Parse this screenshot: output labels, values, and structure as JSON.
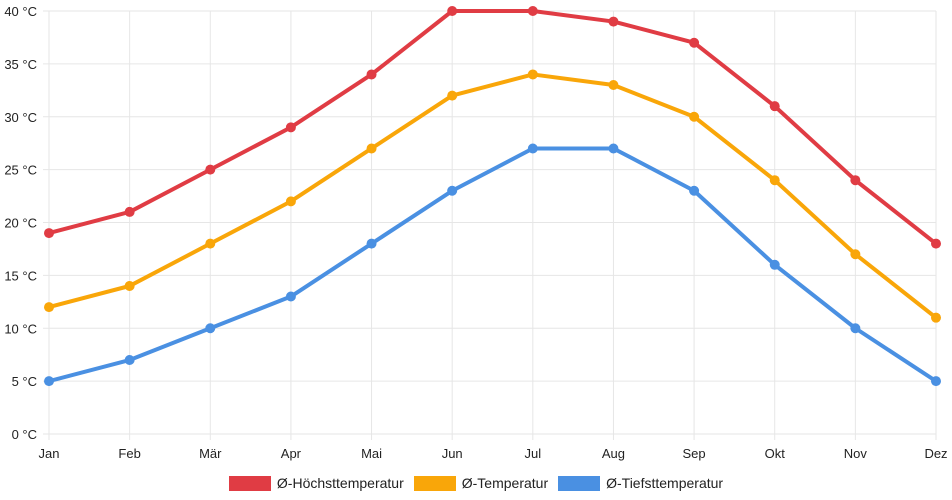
{
  "chart_data": {
    "type": "line",
    "title": "",
    "xlabel": "",
    "ylabel": "",
    "ylim": [
      0,
      40
    ],
    "y_tick_step": 5,
    "y_unit": " °C",
    "grid": true,
    "legend_position": "bottom",
    "categories": [
      "Jan",
      "Feb",
      "Mär",
      "Apr",
      "Mai",
      "Jun",
      "Jul",
      "Aug",
      "Sep",
      "Okt",
      "Nov",
      "Dez"
    ],
    "series": [
      {
        "name": "Ø-Höchsttemperatur",
        "color": "#e03c44",
        "values": [
          19,
          21,
          25,
          29,
          34,
          40,
          40,
          39,
          37,
          31,
          24,
          18
        ]
      },
      {
        "name": "Ø-Temperatur",
        "color": "#f9a609",
        "values": [
          12,
          14,
          18,
          22,
          27,
          32,
          34,
          33,
          30,
          24,
          17,
          11
        ]
      },
      {
        "name": "Ø-Tiefsttemperatur",
        "color": "#4a90e2",
        "values": [
          5,
          7,
          10,
          13,
          18,
          23,
          27,
          27,
          23,
          16,
          10,
          5
        ]
      }
    ]
  }
}
